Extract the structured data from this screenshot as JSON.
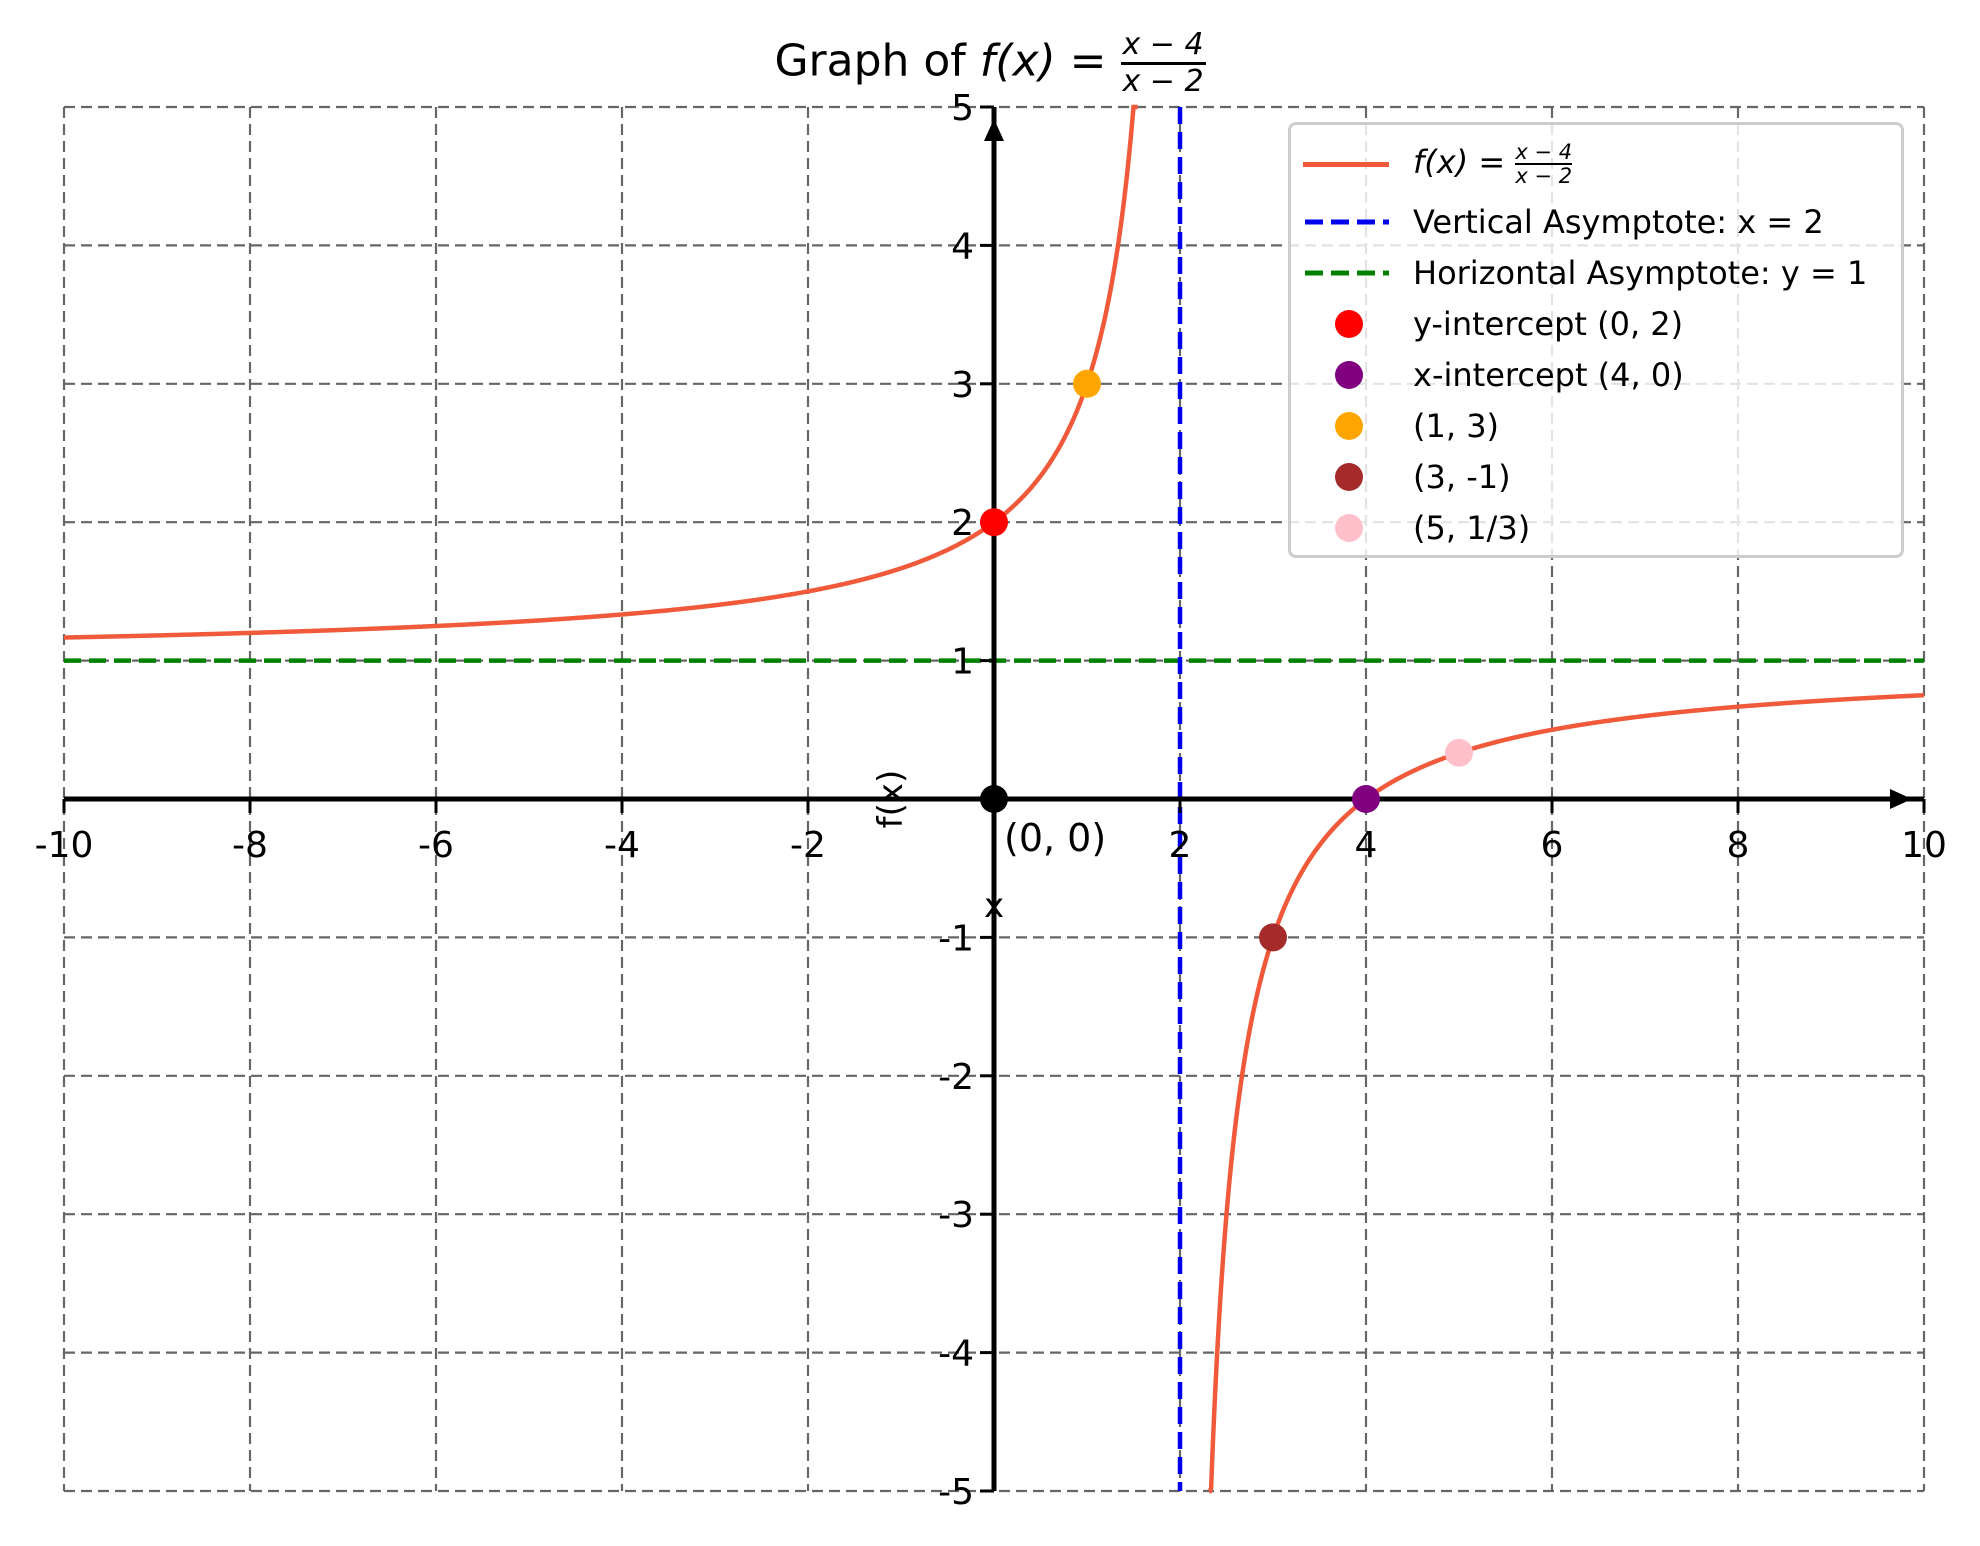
{
  "chart_data": {
    "type": "line",
    "title": "Graph of f(x) = (x - 4)/(x - 2)",
    "title_parts": {
      "prefix": "Graph of ",
      "fx": "f(x) = ",
      "numerator": "x − 4",
      "denominator": "x − 2"
    },
    "function": "(x - 4)/(x - 2)",
    "xlabel": "x",
    "ylabel": "f(x)",
    "xlim": [
      -10,
      10
    ],
    "ylim": [
      -5,
      5
    ],
    "x_ticks": [
      -10,
      -8,
      -6,
      -4,
      -2,
      2,
      4,
      6,
      8,
      10
    ],
    "x_tick_labels": [
      "-10",
      "-8",
      "-6",
      "-4",
      "-2",
      "2",
      "4",
      "6",
      "8",
      "10"
    ],
    "y_ticks": [
      -5,
      -4,
      -3,
      -2,
      -1,
      1,
      2,
      3,
      4,
      5
    ],
    "y_tick_labels": [
      "-5",
      "-4",
      "-3",
      "-2",
      "-1",
      "1",
      "2",
      "3",
      "4",
      "5"
    ],
    "grid": true,
    "legend_position": "upper right",
    "series": [
      {
        "name": "f(x) = (x-4)/(x-2)",
        "kind": "curve",
        "color": "#f05a3a",
        "x": [
          -10,
          -8,
          -6,
          -4,
          -2,
          0,
          1,
          1.5,
          2.5,
          3,
          4,
          5,
          6,
          8,
          10
        ],
        "y": [
          1.1667,
          1.2,
          1.25,
          1.3333,
          1.5,
          2,
          3,
          5,
          -3,
          -1,
          0,
          0.3333,
          0.5,
          0.6667,
          0.75
        ]
      },
      {
        "name": "Vertical Asymptote: x = 2",
        "kind": "vline",
        "value": 2,
        "color": "#0000ee",
        "style": "dashed"
      },
      {
        "name": "Horizontal Asymptote: y = 1",
        "kind": "hline",
        "value": 1,
        "color": "#008000",
        "style": "dashed"
      }
    ],
    "points": [
      {
        "label": "y-intercept (0, 2)",
        "x": 0,
        "y": 2,
        "color": "#ff0000"
      },
      {
        "label": "x-intercept (4, 0)",
        "x": 4,
        "y": 0,
        "color": "#800080"
      },
      {
        "label": "(1, 3)",
        "x": 1,
        "y": 3,
        "color": "#ffa500"
      },
      {
        "label": "(3, -1)",
        "x": 3,
        "y": -1,
        "color": "#a52a2a"
      },
      {
        "label": "(5, 1/3)",
        "x": 5,
        "y": 0.3333,
        "color": "#ffc0cb"
      }
    ],
    "annotations": [
      {
        "text": "(0, 0)",
        "x": 0,
        "y": 0,
        "marker_color": "#000000"
      }
    ]
  },
  "legend": {
    "items": [
      {
        "label_fx": "f(x) = ",
        "label_num": "x − 4",
        "label_den": "x − 2",
        "type": "line",
        "color": "#f05a3a"
      },
      {
        "label": "Vertical Asymptote: x = 2",
        "type": "dash",
        "color": "#0000ee"
      },
      {
        "label": "Horizontal Asymptote: y = 1",
        "type": "dash",
        "color": "#008000"
      },
      {
        "label": "y-intercept (0, 2)",
        "type": "dot",
        "color": "#ff0000"
      },
      {
        "label": "x-intercept (4, 0)",
        "type": "dot",
        "color": "#800080"
      },
      {
        "label": "(1, 3)",
        "type": "dot",
        "color": "#ffa500"
      },
      {
        "label": "(3, -1)",
        "type": "dot",
        "color": "#a52a2a"
      },
      {
        "label": "(5, 1/3)",
        "type": "dot",
        "color": "#ffc0cb"
      }
    ]
  },
  "colors": {
    "grid": "#666666",
    "axis": "#000000",
    "curve": "#f05a3a",
    "vertical_asymptote": "#0000ee",
    "horizontal_asymptote": "#008000"
  }
}
